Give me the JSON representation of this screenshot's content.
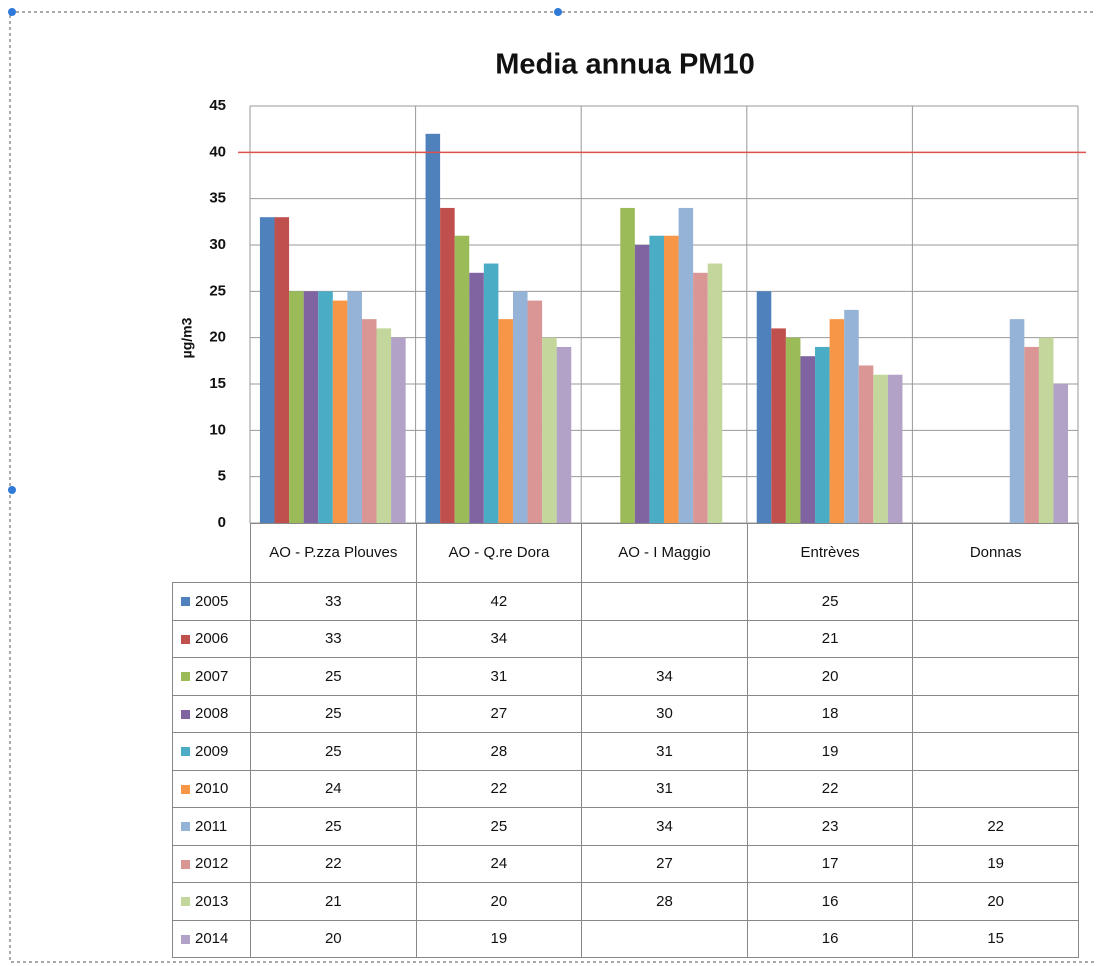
{
  "chart_data": {
    "type": "bar",
    "title": "Media annua PM10",
    "y_label": "µg/m3",
    "categories": [
      "AO - P.zza Plouves",
      "AO - Q.re Dora",
      "AO - I  Maggio",
      "Entrèves",
      "Donnas"
    ],
    "series": [
      {
        "name": "2005",
        "color": "#4f81bd",
        "values": [
          33,
          42,
          null,
          25,
          null
        ]
      },
      {
        "name": "2006",
        "color": "#c0504d",
        "values": [
          33,
          34,
          null,
          21,
          null
        ]
      },
      {
        "name": "2007",
        "color": "#9bbb59",
        "values": [
          25,
          31,
          34,
          20,
          null
        ]
      },
      {
        "name": "2008",
        "color": "#8064a2",
        "values": [
          25,
          27,
          30,
          18,
          null
        ]
      },
      {
        "name": "2009",
        "color": "#4bacc6",
        "values": [
          25,
          28,
          31,
          19,
          null
        ]
      },
      {
        "name": "2010",
        "color": "#f79646",
        "values": [
          24,
          22,
          31,
          22,
          null
        ]
      },
      {
        "name": "2011",
        "color": "#95b3d7",
        "values": [
          25,
          25,
          34,
          23,
          22
        ]
      },
      {
        "name": "2012",
        "color": "#d99694",
        "values": [
          22,
          24,
          27,
          17,
          19
        ]
      },
      {
        "name": "2013",
        "color": "#c3d69b",
        "values": [
          21,
          20,
          28,
          16,
          20
        ]
      },
      {
        "name": "2014",
        "color": "#b3a2c7",
        "values": [
          20,
          19,
          null,
          16,
          15
        ]
      }
    ],
    "ylim": [
      0,
      45
    ],
    "yticks": [
      0,
      5,
      10,
      15,
      20,
      25,
      30,
      35,
      40,
      45
    ],
    "grid": true,
    "reference_line": {
      "value": 40,
      "color": "#e0504d"
    },
    "legend": "table"
  }
}
